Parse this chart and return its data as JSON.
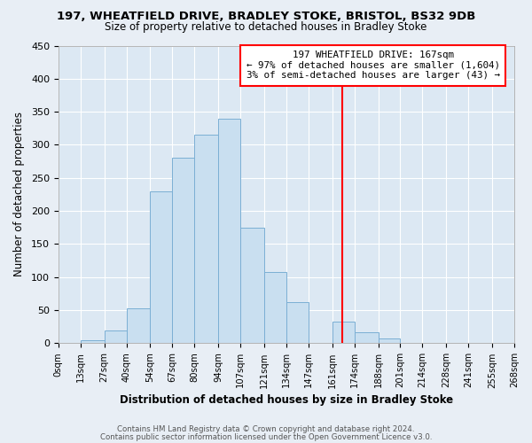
{
  "title": "197, WHEATFIELD DRIVE, BRADLEY STOKE, BRISTOL, BS32 9DB",
  "subtitle": "Size of property relative to detached houses in Bradley Stoke",
  "xlabel": "Distribution of detached houses by size in Bradley Stoke",
  "ylabel": "Number of detached properties",
  "footnote1": "Contains HM Land Registry data © Crown copyright and database right 2024.",
  "footnote2": "Contains public sector information licensed under the Open Government Licence v3.0.",
  "bin_edges": [
    0,
    13,
    27,
    40,
    54,
    67,
    80,
    94,
    107,
    121,
    134,
    147,
    161,
    174,
    188,
    201,
    214,
    228,
    241,
    255,
    268
  ],
  "bar_heights": [
    0,
    5,
    20,
    53,
    230,
    280,
    315,
    340,
    175,
    108,
    62,
    0,
    33,
    17,
    7,
    0,
    0,
    0,
    0,
    0
  ],
  "bar_color": "#c9dff0",
  "bar_edgecolor": "#7bafd4",
  "property_line_x": 167,
  "property_line_color": "red",
  "annotation_title": "197 WHEATFIELD DRIVE: 167sqm",
  "annotation_line1": "← 97% of detached houses are smaller (1,604)",
  "annotation_line2": "3% of semi-detached houses are larger (43) →",
  "annotation_box_color": "white",
  "annotation_box_edgecolor": "red",
  "tick_labels": [
    "0sqm",
    "13sqm",
    "27sqm",
    "40sqm",
    "54sqm",
    "67sqm",
    "80sqm",
    "94sqm",
    "107sqm",
    "121sqm",
    "134sqm",
    "147sqm",
    "161sqm",
    "174sqm",
    "188sqm",
    "201sqm",
    "214sqm",
    "228sqm",
    "241sqm",
    "255sqm",
    "268sqm"
  ],
  "ylim": [
    0,
    450
  ],
  "yticks": [
    0,
    50,
    100,
    150,
    200,
    250,
    300,
    350,
    400,
    450
  ],
  "background_color": "#e8eef5",
  "plot_background_color": "#dce8f3"
}
